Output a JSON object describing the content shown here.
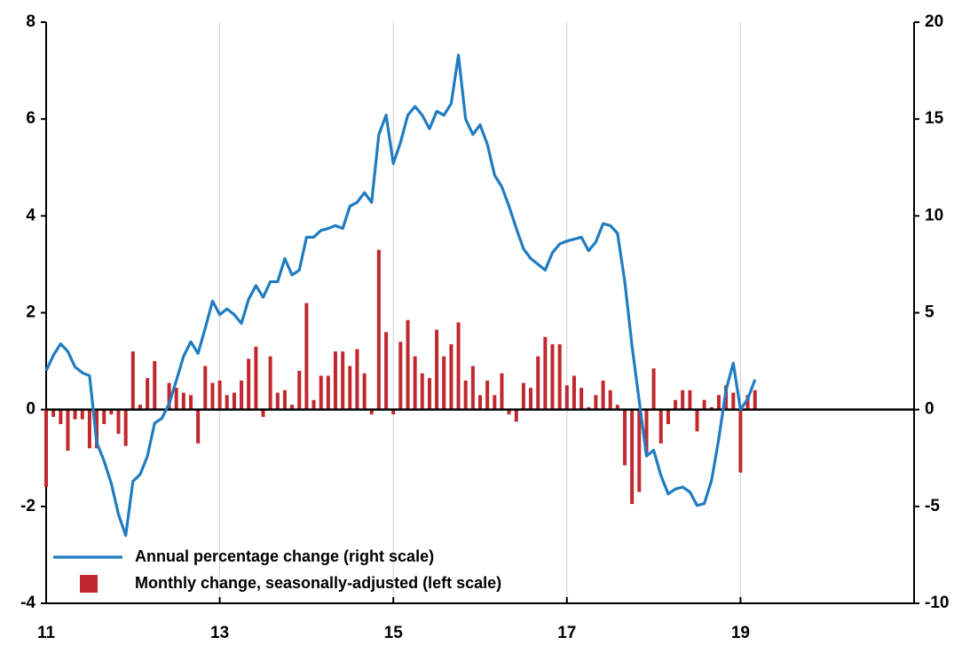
{
  "chart_data": {
    "type": "bar_line",
    "legend": "lower left",
    "xlim": [
      11,
      21
    ],
    "xticks": [
      11,
      13,
      15,
      17,
      19
    ],
    "ylim": [
      -4,
      8
    ],
    "yticks": [
      -4,
      -2,
      0,
      2,
      4,
      6,
      8
    ],
    "y2lim": [
      -10,
      20
    ],
    "y2ticks": [
      -10,
      -5,
      0,
      5,
      10,
      15,
      20
    ],
    "grid": true,
    "x": [
      11,
      11.083,
      11.167,
      11.25,
      11.333,
      11.417,
      11.5,
      11.583,
      11.667,
      11.75,
      11.833,
      11.917,
      12,
      12.083,
      12.167,
      12.25,
      12.333,
      12.417,
      12.5,
      12.583,
      12.667,
      12.75,
      12.833,
      12.917,
      13,
      13.083,
      13.167,
      13.25,
      13.333,
      13.417,
      13.5,
      13.583,
      13.667,
      13.75,
      13.833,
      13.917,
      14,
      14.083,
      14.167,
      14.25,
      14.333,
      14.417,
      14.5,
      14.583,
      14.667,
      14.75,
      14.833,
      14.917,
      15,
      15.083,
      15.167,
      15.25,
      15.333,
      15.417,
      15.5,
      15.583,
      15.667,
      15.75,
      15.833,
      15.917,
      16,
      16.083,
      16.167,
      16.25,
      16.333,
      16.417,
      16.5,
      16.583,
      16.667,
      16.75,
      16.833,
      16.917,
      17,
      17.083,
      17.167,
      17.25,
      17.333,
      17.417,
      17.5,
      17.583,
      17.667,
      17.75,
      17.833,
      17.917,
      18,
      18.083,
      18.167,
      18.25,
      18.333,
      18.417,
      18.5,
      18.583,
      18.667,
      18.75,
      18.833,
      18.917,
      19,
      19.083,
      19.167
    ],
    "series": [
      {
        "name": "Annual percentage change (right scale)",
        "color": "#1f7cc1",
        "axis": "y2",
        "kind": "line",
        "values": [
          2.0,
          2.8,
          3.4,
          3.0,
          2.2,
          1.9,
          1.75,
          -1.7,
          -2.65,
          -3.8,
          -5.4,
          -6.5,
          -3.7,
          -3.35,
          -2.4,
          -0.7,
          -0.45,
          0.3,
          1.5,
          2.75,
          3.5,
          2.9,
          4.2,
          5.6,
          4.9,
          5.2,
          4.9,
          4.45,
          5.7,
          6.4,
          5.8,
          6.6,
          6.6,
          7.8,
          6.95,
          7.2,
          8.9,
          8.9,
          9.25,
          9.35,
          9.5,
          9.35,
          10.5,
          10.7,
          11.2,
          10.7,
          14.2,
          15.2,
          12.7,
          13.8,
          15.2,
          15.65,
          15.2,
          14.5,
          15.4,
          15.2,
          15.8,
          18.3,
          15.0,
          14.2,
          14.7,
          13.7,
          12.1,
          11.5,
          10.5,
          9.35,
          8.3,
          7.8,
          7.5,
          7.2,
          8.1,
          8.55,
          8.7,
          8.8,
          8.9,
          8.2,
          8.65,
          9.6,
          9.5,
          9.1,
          6.6,
          3.3,
          0.45,
          -2.4,
          -2.1,
          -3.4,
          -4.35,
          -4.1,
          -4.0,
          -4.25,
          -4.95,
          -4.85,
          -3.65,
          -1.5,
          1.0,
          2.4,
          0,
          0.55,
          1.55
        ]
      },
      {
        "name": "Monthly change, seasonally-adjusted (left scale)",
        "color": "#c1272d",
        "axis": "y",
        "kind": "bar",
        "values": [
          -1.6,
          -0.15,
          -0.3,
          -0.85,
          -0.2,
          -0.2,
          -0.8,
          -0.8,
          -0.3,
          -0.1,
          -0.5,
          -0.75,
          1.2,
          0.1,
          0.65,
          1.0,
          0,
          0.55,
          0.45,
          0.35,
          0.3,
          -0.7,
          0.9,
          0.55,
          0.6,
          0.3,
          0.35,
          0.6,
          1.05,
          1.3,
          -0.15,
          1.1,
          0.35,
          0.4,
          0.1,
          0.8,
          2.2,
          0.2,
          0.7,
          0.7,
          1.2,
          1.2,
          0.9,
          1.25,
          0.75,
          -0.1,
          3.3,
          1.6,
          -0.1,
          1.4,
          1.85,
          1.1,
          0.75,
          0.65,
          1.65,
          1.1,
          1.35,
          1.8,
          0.6,
          0.9,
          0.3,
          0.6,
          0.3,
          0.75,
          -0.1,
          -0.25,
          0.55,
          0.45,
          1.1,
          1.5,
          1.35,
          1.35,
          0.5,
          0.7,
          0.45,
          0.05,
          0.3,
          0.6,
          0.4,
          0.1,
          -1.15,
          -1.95,
          -1.7,
          -0.9,
          0.85,
          -0.7,
          -0.3,
          0.2,
          0.4,
          0.4,
          -0.45,
          0.2,
          0.05,
          0.3,
          0.5,
          0.35,
          -1.3,
          0.3,
          0.4
        ]
      }
    ]
  }
}
